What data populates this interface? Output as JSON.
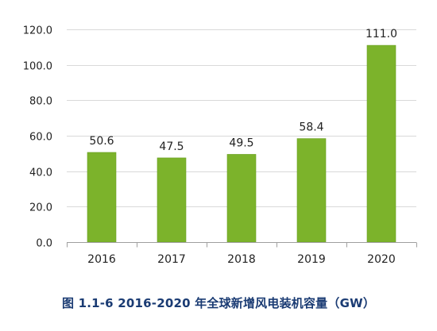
{
  "caption": "图 1.1-6 2016-2020 年全球新增风电装机容量（GW）",
  "colors": {
    "bar": "#7cb32b",
    "bar_edge": "#6a9e22",
    "grid": "#d9d9d9",
    "axis": "#9f9f9f",
    "text": "#222222",
    "caption": "#1a3b73"
  },
  "chart_data": {
    "type": "bar",
    "title": "",
    "xlabel": "",
    "ylabel": "",
    "categories": [
      "2016",
      "2017",
      "2018",
      "2019",
      "2020"
    ],
    "values": [
      50.6,
      47.5,
      49.5,
      58.4,
      111.0
    ],
    "value_labels": [
      "50.6",
      "47.5",
      "49.5",
      "58.4",
      "111.0"
    ],
    "ylim": [
      0,
      120
    ],
    "yticks": [
      "0.0",
      "20.0",
      "40.0",
      "60.0",
      "80.0",
      "100.0",
      "120.0"
    ],
    "grid": true,
    "legend": "none"
  }
}
